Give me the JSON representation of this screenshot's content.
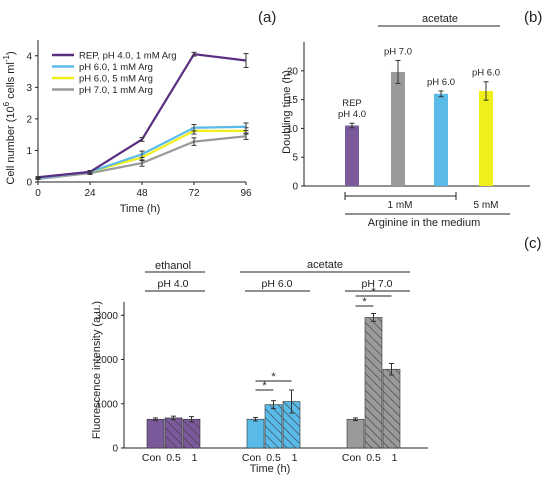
{
  "colors": {
    "purple": "#7b5a9b",
    "blue": "#5bbbe8",
    "yellow": "#f0ef1c",
    "gray": "#9a9a9a",
    "darkpurple": "#5a2d82",
    "axis": "#222222"
  },
  "panels": {
    "a": {
      "letter": "(a)"
    },
    "b": {
      "letter": "(b)"
    },
    "c": {
      "letter": "(c)"
    }
  },
  "chart_data": [
    {
      "panel": "a",
      "type": "line",
      "ylabel_main": "Cell number (10",
      "ylabel_sup": "6",
      "ylabel_tail": " cells ml",
      "ylabel_sup2": "-1",
      "ylabel_end": ")",
      "xlabel": "Time (h)",
      "x": [
        0,
        24,
        48,
        72,
        96
      ],
      "xlim": [
        0,
        96
      ],
      "ylim": [
        0,
        4.5
      ],
      "xticks": [
        "0",
        "24",
        "48",
        "72",
        "96"
      ],
      "yticks": [
        "0",
        "1",
        "2",
        "3",
        "4"
      ],
      "legend_position": "top-left",
      "series": [
        {
          "name": "REP, pH 4.0, 1 mM Arg",
          "color": "#5a2d82",
          "values": [
            0.15,
            0.32,
            1.35,
            4.05,
            3.85
          ],
          "err": [
            0.02,
            0.04,
            0.06,
            0.06,
            0.22
          ]
        },
        {
          "name": "pH 6.0, 1 mM Arg",
          "color": "#5bbbe8",
          "values": [
            0.12,
            0.32,
            0.88,
            1.72,
            1.75
          ],
          "err": [
            0.02,
            0.04,
            0.1,
            0.1,
            0.12
          ]
        },
        {
          "name": "pH 6.0, 5 mM Arg",
          "color": "#f0ef1c",
          "values": [
            0.12,
            0.32,
            0.78,
            1.62,
            1.62
          ],
          "err": [
            0.02,
            0.04,
            0.1,
            0.1,
            0.1
          ]
        },
        {
          "name": "pH 7.0, 1 mM Arg",
          "color": "#9a9a9a",
          "values": [
            0.1,
            0.28,
            0.6,
            1.28,
            1.45
          ],
          "err": [
            0.02,
            0.04,
            0.1,
            0.12,
            0.1
          ]
        }
      ]
    },
    {
      "panel": "b",
      "type": "bar",
      "ylabel": "Doubling time (h)",
      "ylim": [
        0,
        25
      ],
      "yticks": [
        "0",
        "5",
        "10",
        "15",
        "20"
      ],
      "categories": [
        "REP pH 4.0",
        "pH 7.0",
        "pH 6.0",
        "pH 6.0"
      ],
      "bar_labels": [
        [
          "REP",
          "pH 4.0"
        ],
        [
          "pH 7.0"
        ],
        [
          "pH 6.0"
        ],
        [
          "pH 6.0"
        ]
      ],
      "values": [
        10.5,
        19.8,
        16.0,
        16.5
      ],
      "err": [
        0.4,
        2.0,
        0.5,
        1.6
      ],
      "colors": [
        "#7b5a9b",
        "#9a9a9a",
        "#5bbbe8",
        "#f0ef1c"
      ],
      "top_group_label": "acetate",
      "bottom_group_labels": [
        "1 mM",
        "5 mM"
      ],
      "bottom_title": "Arginine in the medium"
    },
    {
      "panel": "c",
      "type": "bar",
      "ylabel": "Fluorescence intensity (a.u.)",
      "xlabel": "Time (h)",
      "ylim": [
        0,
        3300
      ],
      "yticks": [
        "0",
        "1000",
        "2000",
        "3000"
      ],
      "tick_labels": [
        "Con",
        "0.5",
        "1"
      ],
      "top_labels": [
        "ethanol",
        "acetate"
      ],
      "ph_labels": [
        "pH 4.0",
        "pH 6.0",
        "pH 7.0"
      ],
      "star": "*",
      "groups": [
        {
          "ph": "pH 4.0",
          "color": "#7b5a9b",
          "categories": [
            "Con",
            "0.5",
            "1"
          ],
          "values": [
            650,
            680,
            650
          ],
          "err": [
            30,
            40,
            60
          ]
        },
        {
          "ph": "pH 6.0",
          "color": "#5bbbe8",
          "categories": [
            "Con",
            "0.5",
            "1"
          ],
          "values": [
            650,
            980,
            1050
          ],
          "err": [
            40,
            90,
            260
          ]
        },
        {
          "ph": "pH 7.0",
          "color": "#9a9a9a",
          "categories": [
            "Con",
            "0.5",
            "1"
          ],
          "values": [
            650,
            2950,
            1780
          ],
          "err": [
            30,
            90,
            130
          ]
        }
      ]
    }
  ]
}
